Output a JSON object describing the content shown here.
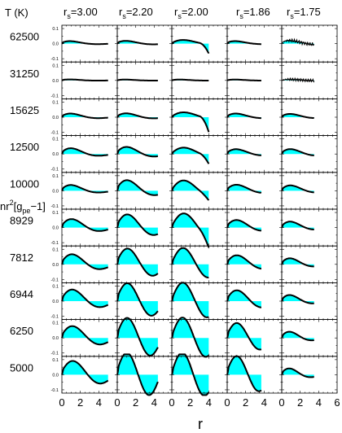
{
  "figure": {
    "row_header": "T (K)",
    "y_axis_label": "nr",
    "y_axis_label_sup": "2",
    "y_axis_label_rest": "[g",
    "y_axis_label_sub": "pe",
    "y_axis_label_end": "−1]",
    "x_axis_label": "r",
    "fill_color": "#00ffff",
    "line_color": "#000000"
  },
  "chart_data": {
    "type": "area",
    "description_of_layout": "grid of small panels: rows = temperature, columns = r_s",
    "columns": [
      {
        "prefix": "r",
        "sub": "s",
        "suffix": "=3.00",
        "value": 3.0
      },
      {
        "prefix": "r",
        "sub": "s",
        "suffix": "=2.20",
        "value": 2.2
      },
      {
        "prefix": "r",
        "sub": "s",
        "suffix": "=2.00",
        "value": 2.0
      },
      {
        "prefix": "r",
        "sub": "s",
        "suffix": "=1.86",
        "value": 1.86
      },
      {
        "prefix": "r",
        "sub": "s",
        "suffix": "=1.75",
        "value": 1.75
      }
    ],
    "rows": [
      "62500",
      "31250",
      "15625",
      "12500",
      "10000",
      "8929",
      "7812",
      "6944",
      "6250",
      "5000"
    ],
    "xlim": [
      0,
      6
    ],
    "x_ticks": [
      "0",
      "2",
      "4",
      "0",
      "2",
      "4",
      "0",
      "2",
      "4",
      "0",
      "2",
      "4",
      "0",
      "2",
      "4",
      "6"
    ],
    "ylim": [
      -0.1,
      0.1
    ],
    "y_ticks": [
      "0.1",
      "0.0",
      "-0.1"
    ],
    "series": [
      {
        "row": "62500",
        "curves": [
          {
            "A": 0.03,
            "k": 1.05,
            "p": 0.2,
            "d": 0.55,
            "end": 5.0
          },
          {
            "A": 0.03,
            "k": 1.05,
            "p": 0.2,
            "d": 0.45,
            "end": 4.4
          },
          {
            "A": 0.04,
            "k": 0.9,
            "p": 0.1,
            "d": 0.35,
            "end": 4.0,
            "drop": 0.06
          },
          {
            "A": 0.03,
            "k": 1.05,
            "p": 0.2,
            "d": 0.55,
            "end": 3.7
          },
          {
            "A": 0.035,
            "k": 1.1,
            "p": 0.2,
            "d": 0.5,
            "end": 3.5,
            "noise": 0.012
          }
        ]
      },
      {
        "row": "31250",
        "curves": [
          {
            "A": 0.012,
            "k": 1.05,
            "p": 0.2,
            "d": 0.55,
            "end": 5.0
          },
          {
            "A": 0.01,
            "k": 1.05,
            "p": 0.2,
            "d": 0.55,
            "end": 4.4
          },
          {
            "A": 0.01,
            "k": 1.05,
            "p": 0.2,
            "d": 0.55,
            "end": 4.0
          },
          {
            "A": 0.01,
            "k": 1.05,
            "p": 0.2,
            "d": 0.55,
            "end": 3.7
          },
          {
            "A": 0.012,
            "k": 1.05,
            "p": 0.2,
            "d": 0.55,
            "end": 3.5,
            "noise": 0.01
          }
        ]
      },
      {
        "row": "15625",
        "curves": [
          {
            "A": 0.04,
            "k": 1.05,
            "p": 0.2,
            "d": 0.45,
            "end": 5.0
          },
          {
            "A": 0.04,
            "k": 1.05,
            "p": 0.2,
            "d": 0.4,
            "end": 4.4
          },
          {
            "A": 0.05,
            "k": 0.9,
            "p": 0.1,
            "d": 0.3,
            "end": 4.0,
            "drop": 0.09
          },
          {
            "A": 0.04,
            "k": 1.05,
            "p": 0.2,
            "d": 0.45,
            "end": 3.7
          },
          {
            "A": 0.035,
            "k": 1.1,
            "p": 0.2,
            "d": 0.45,
            "end": 3.5
          }
        ]
      },
      {
        "row": "12500",
        "curves": [
          {
            "A": 0.06,
            "k": 1.05,
            "p": 0.2,
            "d": 0.4,
            "end": 5.0
          },
          {
            "A": 0.07,
            "k": 1.05,
            "p": 0.2,
            "d": 0.35,
            "end": 4.4
          },
          {
            "A": 0.06,
            "k": 0.95,
            "p": 0.1,
            "d": 0.25,
            "end": 4.0,
            "drop": 0.05
          },
          {
            "A": 0.05,
            "k": 1.05,
            "p": 0.2,
            "d": 0.4,
            "end": 3.7
          },
          {
            "A": 0.05,
            "k": 1.1,
            "p": 0.2,
            "d": 0.4,
            "end": 3.5
          }
        ]
      },
      {
        "row": "10000",
        "curves": [
          {
            "A": 0.06,
            "k": 1.05,
            "p": 0.2,
            "d": 0.4,
            "end": 5.0
          },
          {
            "A": 0.1,
            "k": 1.05,
            "p": 0.2,
            "d": 0.3,
            "end": 4.4
          },
          {
            "A": 0.09,
            "k": 1.0,
            "p": 0.1,
            "d": 0.2,
            "end": 4.0,
            "drop": 0.03
          },
          {
            "A": 0.06,
            "k": 1.05,
            "p": 0.2,
            "d": 0.35,
            "end": 3.7
          },
          {
            "A": 0.055,
            "k": 1.1,
            "p": 0.2,
            "d": 0.4,
            "end": 3.5
          }
        ]
      },
      {
        "row": "8929",
        "curves": [
          {
            "A": 0.08,
            "k": 1.05,
            "p": 0.2,
            "d": 0.3,
            "end": 5.0
          },
          {
            "A": 0.11,
            "k": 1.1,
            "p": 0.2,
            "d": 0.2,
            "end": 4.4
          },
          {
            "A": 0.11,
            "k": 1.05,
            "p": 0.1,
            "d": 0.12,
            "end": 4.0,
            "drop": 0.07
          },
          {
            "A": 0.07,
            "k": 1.1,
            "p": 0.2,
            "d": 0.3,
            "end": 3.7
          },
          {
            "A": 0.06,
            "k": 1.15,
            "p": 0.2,
            "d": 0.4,
            "end": 3.5
          }
        ]
      },
      {
        "row": "7812",
        "curves": [
          {
            "A": 0.09,
            "k": 1.05,
            "p": 0.2,
            "d": 0.25,
            "end": 5.0
          },
          {
            "A": 0.12,
            "k": 1.15,
            "p": 0.2,
            "d": 0.12,
            "end": 4.4
          },
          {
            "A": 0.12,
            "k": 1.15,
            "p": 0.1,
            "d": 0.08,
            "end": 4.0
          },
          {
            "A": 0.08,
            "k": 1.1,
            "p": 0.2,
            "d": 0.25,
            "end": 3.7
          },
          {
            "A": 0.06,
            "k": 1.2,
            "p": 0.2,
            "d": 0.4,
            "end": 3.5
          }
        ]
      },
      {
        "row": "6944",
        "curves": [
          {
            "A": 0.1,
            "k": 1.05,
            "p": 0.2,
            "d": 0.22,
            "end": 5.0
          },
          {
            "A": 0.13,
            "k": 1.2,
            "p": 0.2,
            "d": 0.08,
            "end": 4.4
          },
          {
            "A": 0.13,
            "k": 1.2,
            "p": 0.1,
            "d": 0.05,
            "end": 4.0
          },
          {
            "A": 0.09,
            "k": 1.15,
            "p": 0.2,
            "d": 0.2,
            "end": 3.7
          },
          {
            "A": 0.06,
            "k": 1.25,
            "p": 0.2,
            "d": 0.4,
            "end": 3.5
          }
        ]
      },
      {
        "row": "6250",
        "curves": [
          {
            "A": 0.1,
            "k": 1.05,
            "p": 0.2,
            "d": 0.2,
            "end": 5.0
          },
          {
            "A": 0.14,
            "k": 1.25,
            "p": 0.2,
            "d": 0.05,
            "end": 4.4
          },
          {
            "A": 0.14,
            "k": 1.25,
            "p": 0.1,
            "d": 0.03,
            "end": 4.0
          },
          {
            "A": 0.11,
            "k": 1.25,
            "p": 0.2,
            "d": 0.1,
            "end": 3.7
          },
          {
            "A": 0.06,
            "k": 1.3,
            "p": 0.2,
            "d": 0.4,
            "end": 3.5
          }
        ]
      },
      {
        "row": "5000",
        "curves": [
          {
            "A": 0.11,
            "k": 1.05,
            "p": 0.2,
            "d": 0.15,
            "end": 5.0
          },
          {
            "A": 0.15,
            "k": 1.3,
            "p": 0.2,
            "d": 0.03,
            "end": 4.4
          },
          {
            "A": 0.15,
            "k": 1.3,
            "p": 0.1,
            "d": 0.02,
            "end": 4.0
          },
          {
            "A": 0.13,
            "k": 1.3,
            "p": 0.2,
            "d": 0.05,
            "end": 3.7
          },
          {
            "A": 0.06,
            "k": 1.35,
            "p": 0.2,
            "d": 0.4,
            "end": 3.5
          }
        ]
      }
    ]
  }
}
